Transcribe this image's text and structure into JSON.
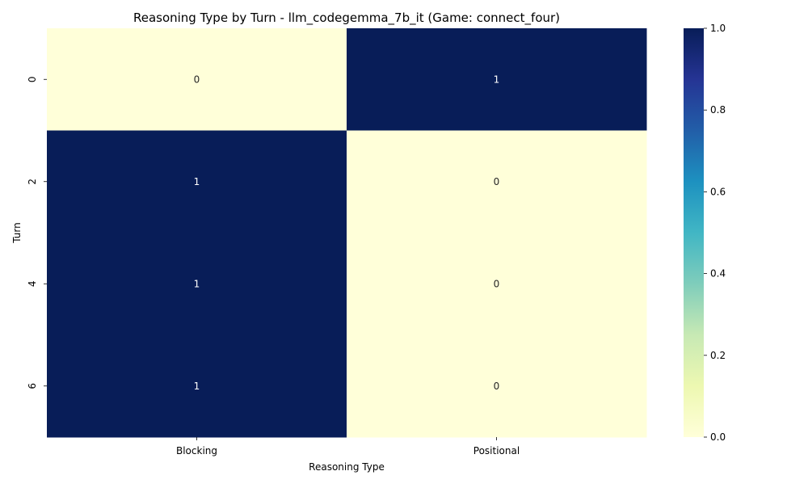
{
  "chart_data": {
    "type": "heatmap",
    "title": "Reasoning Type by Turn - llm_codegemma_7b_it (Game: connect_four)",
    "xlabel": "Reasoning Type",
    "ylabel": "Turn",
    "x_categories": [
      "Blocking",
      "Positional"
    ],
    "y_categories": [
      "0",
      "2",
      "4",
      "6"
    ],
    "values": [
      [
        0,
        1
      ],
      [
        1,
        0
      ],
      [
        1,
        0
      ],
      [
        1,
        0
      ]
    ],
    "cell_labels": [
      [
        "0",
        "1"
      ],
      [
        "1",
        "0"
      ],
      [
        "1",
        "0"
      ],
      [
        "1",
        "0"
      ]
    ],
    "colorbar": {
      "range": [
        0,
        1
      ],
      "ticks": [
        "0.0",
        "0.2",
        "0.4",
        "0.6",
        "0.8",
        "1.0"
      ],
      "colormap": "YlGnBu",
      "stops": [
        "#ffffd9",
        "#edf8b1",
        "#c7e9b4",
        "#7fcdbb",
        "#41b6c4",
        "#1d91c0",
        "#225ea8",
        "#253494",
        "#081d58"
      ]
    },
    "legend": "colorbar-right",
    "grid": false
  }
}
